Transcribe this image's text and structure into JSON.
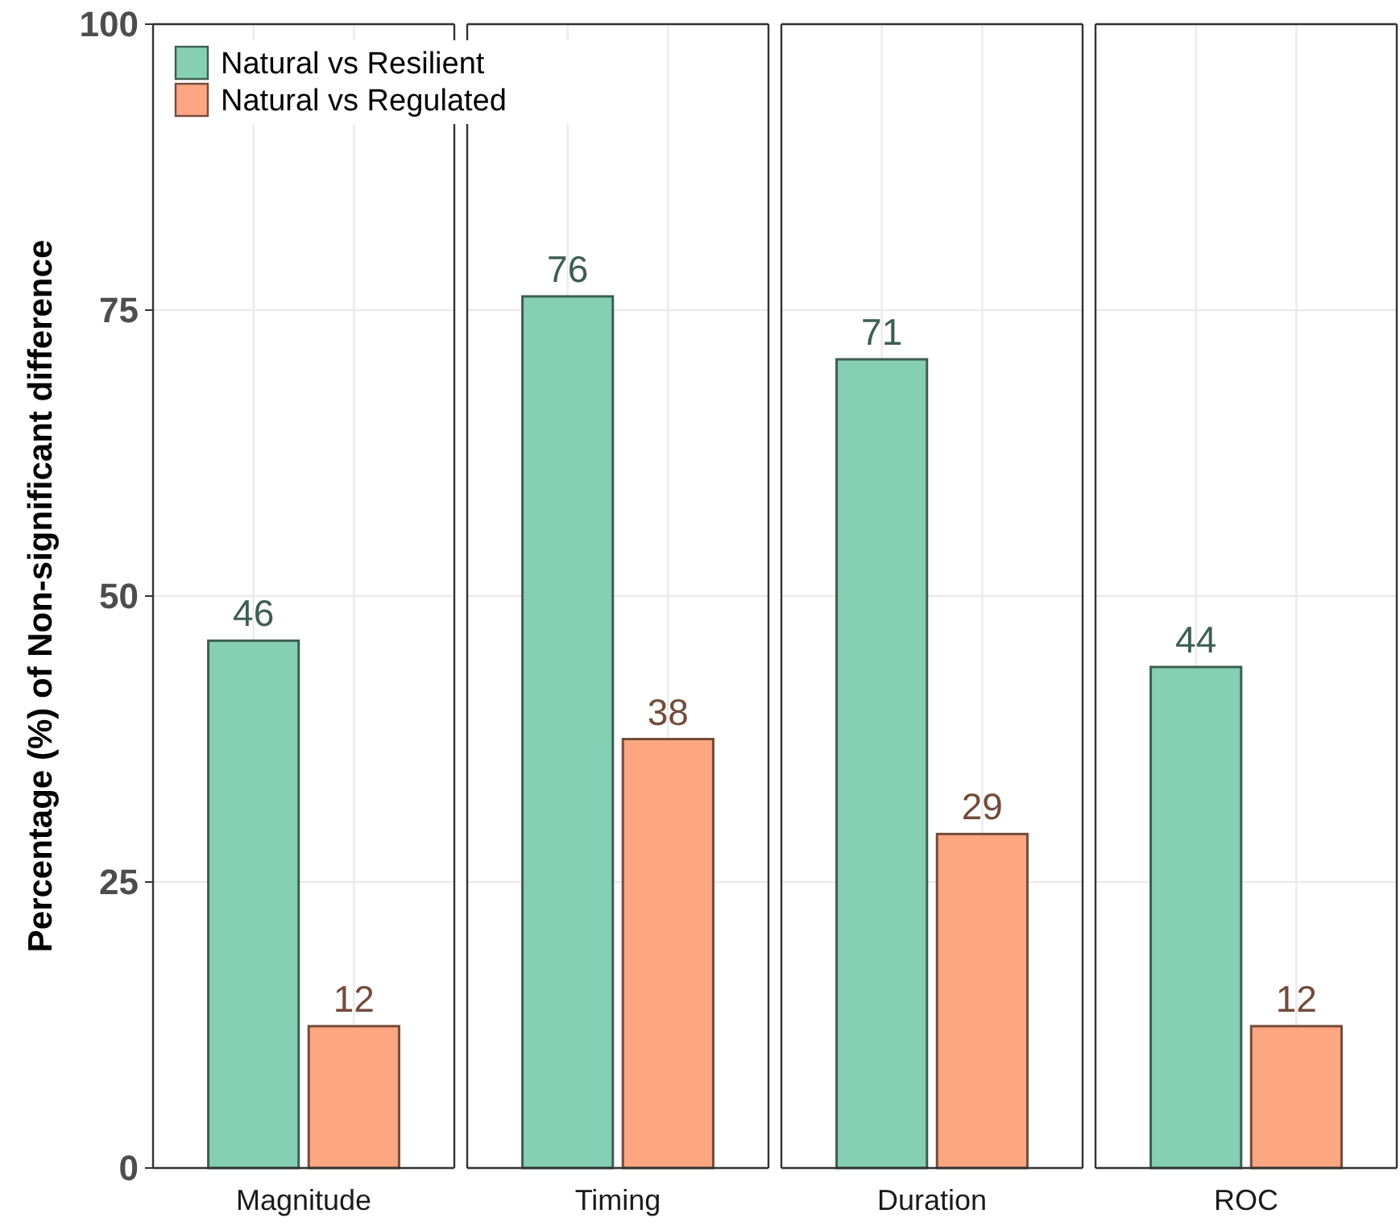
{
  "chart_data": {
    "type": "bar",
    "ylabel": "Percentage (%) of Non-significant difference",
    "categories": [
      "Magnitude",
      "Timing",
      "Duration",
      "ROC"
    ],
    "series": [
      {
        "name": "Natural vs Resilient",
        "color": "#85cfb4",
        "values": [
          46.1,
          76.2,
          70.7,
          43.8
        ],
        "value_labels": [
          "46",
          "76",
          "71",
          "44"
        ]
      },
      {
        "name": "Natural vs Regulated",
        "color": "#fca682",
        "values": [
          12.4,
          37.5,
          29.2,
          12.4
        ],
        "value_labels": [
          "12",
          "38",
          "29",
          "12"
        ]
      }
    ],
    "ylim": [
      0,
      100
    ],
    "yticks": [
      0,
      25,
      50,
      75,
      100
    ],
    "grid": true,
    "legend": "top left"
  }
}
